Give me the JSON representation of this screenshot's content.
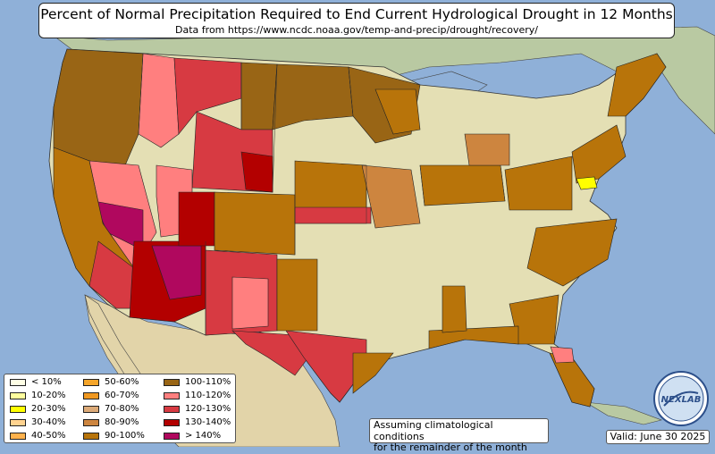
{
  "title": "Percent of Normal Precipitation Required to End Current Hydrological Drought in 12 Months",
  "subtitle": "Data from https://www.ncdc.noaa.gov/temp-and-precip/drought/recovery/",
  "note_line1": "Assuming climatological conditions",
  "note_line2": "for the remainder of the month",
  "valid_label": "Valid: June 30 2025",
  "logo_text": "NEXLAB",
  "colors": {
    "ocean": "#8fb0d8",
    "land": "#e4dfb4",
    "canada": "#b9c9a2",
    "mexico": "#e2d4a9"
  },
  "legend": [
    {
      "label": "< 10%",
      "color": "#ffffe6"
    },
    {
      "label": "10-20%",
      "color": "#ffff9e"
    },
    {
      "label": "20-30%",
      "color": "#ffff00"
    },
    {
      "label": "30-40%",
      "color": "#ffd390"
    },
    {
      "label": "40-50%",
      "color": "#ffb24d"
    },
    {
      "label": "50-60%",
      "color": "#f5a52a"
    },
    {
      "label": "60-70%",
      "color": "#f09820"
    },
    {
      "label": "70-80%",
      "color": "#dcaa78"
    },
    {
      "label": "80-90%",
      "color": "#cd853f"
    },
    {
      "label": "90-100%",
      "color": "#b8740a"
    },
    {
      "label": "100-110%",
      "color": "#996515"
    },
    {
      "label": "110-120%",
      "color": "#ff7f7f"
    },
    {
      "label": "120-130%",
      "color": "#d73a42"
    },
    {
      "label": "130-140%",
      "color": "#b30000"
    },
    {
      "label": "> 140%",
      "color": "#b0085e"
    }
  ]
}
